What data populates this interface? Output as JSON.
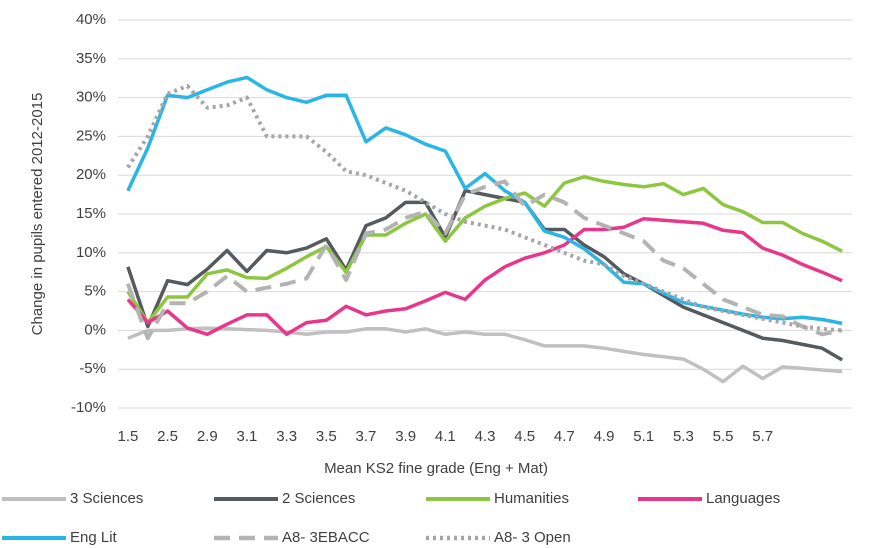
{
  "chart_data": {
    "type": "line",
    "x_label": "Mean KS2 fine grade (Eng + Mat)",
    "y_label": "Change in pupils entered 2012-2015",
    "categories": [
      1.5,
      null,
      2.5,
      null,
      2.9,
      null,
      3.1,
      null,
      3.3,
      null,
      3.5,
      null,
      3.7,
      null,
      3.9,
      null,
      4.1,
      null,
      4.3,
      null,
      4.5,
      null,
      4.7,
      null,
      4.9,
      null,
      5.1,
      null,
      5.3,
      null,
      5.5,
      null,
      5.7,
      null,
      null,
      null,
      null
    ],
    "ylim": [
      -10,
      40
    ],
    "yticks": [
      {
        "value": -10,
        "label": "-10%"
      },
      {
        "value": -5,
        "label": "-5%"
      },
      {
        "value": 0,
        "label": "0%"
      },
      {
        "value": 5,
        "label": "5%"
      },
      {
        "value": 10,
        "label": "10%"
      },
      {
        "value": 15,
        "label": "15%"
      },
      {
        "value": 20,
        "label": "20%"
      },
      {
        "value": 25,
        "label": "25%"
      },
      {
        "value": 30,
        "label": "30%"
      },
      {
        "value": 35,
        "label": "35%"
      },
      {
        "value": 40,
        "label": "40%"
      }
    ],
    "grid": true,
    "legend": "bottom",
    "series": [
      {
        "name": "3 Sciences",
        "color": "#c0c0c0",
        "dash": "solid",
        "values": [
          -1,
          0,
          0,
          0.2,
          0.3,
          0.2,
          0.1,
          0,
          -0.2,
          -0.5,
          -0.2,
          -0.2,
          0.2,
          0.2,
          -0.2,
          0.2,
          -0.5,
          -0.2,
          -0.5,
          -0.5,
          -1.2,
          -2,
          -2,
          -2,
          -2.3,
          -2.7,
          -3.1,
          -3.4,
          -3.7,
          -5,
          -6.6,
          -4.6,
          -6.2,
          -4.7,
          -4.9,
          -5.1,
          -5.3
        ]
      },
      {
        "name": "2 Sciences",
        "color": "#555a5e",
        "dash": "solid",
        "values": [
          8.2,
          0.5,
          6.4,
          5.9,
          7.9,
          10.3,
          7.6,
          10.3,
          10,
          10.6,
          11.8,
          7.8,
          13.5,
          14.5,
          16.5,
          16.5,
          12,
          18,
          17.5,
          17,
          16.5,
          13,
          13,
          11,
          9.5,
          7.3,
          6,
          4.5,
          3,
          2,
          1,
          0,
          -1,
          -1.3,
          -1.8,
          -2.3,
          -3.8
        ]
      },
      {
        "name": "Humanities",
        "color": "#8dc63f",
        "dash": "solid",
        "values": [
          5,
          1,
          4.3,
          4.3,
          7.3,
          7.8,
          6.8,
          6.7,
          8,
          9.5,
          10.8,
          7.5,
          12.3,
          12.3,
          13.8,
          15,
          11.5,
          14.5,
          16,
          17,
          17.7,
          16,
          19,
          19.8,
          19.2,
          18.8,
          18.5,
          18.9,
          17.5,
          18.3,
          16.2,
          15.3,
          13.9,
          13.9,
          12.5,
          11.5,
          10.2
        ]
      },
      {
        "name": "Languages",
        "color": "#e8378a",
        "dash": "solid",
        "values": [
          4,
          1,
          2.5,
          0.3,
          -0.5,
          0.8,
          2,
          2,
          -0.5,
          1,
          1.3,
          3.1,
          2,
          2.5,
          2.8,
          3.8,
          4.9,
          4,
          6.5,
          8.2,
          9.3,
          10,
          11,
          13,
          13,
          13.3,
          14.4,
          14.2,
          14,
          13.8,
          12.9,
          12.6,
          10.6,
          9.7,
          8.5,
          7.5,
          6.4
        ]
      },
      {
        "name": "Eng Lit",
        "color": "#29b6e6",
        "dash": "solid",
        "values": [
          18,
          23.5,
          30.3,
          30,
          31,
          32,
          32.6,
          31,
          30,
          29.4,
          30.3,
          30.3,
          24.3,
          26.1,
          25.2,
          24,
          23.1,
          18.3,
          20.2,
          18,
          16.5,
          12.8,
          12,
          10.5,
          8.5,
          6.2,
          6,
          4.8,
          3.6,
          3.1,
          2.6,
          2.1,
          1.7,
          1.5,
          1.7,
          1.4,
          0.9
        ]
      },
      {
        "name": "A8- 3EBACC",
        "color": "#b3b3b3",
        "dash": "dashed",
        "values": [
          6,
          -1,
          3.5,
          3.5,
          5,
          7,
          5,
          5.5,
          6,
          6.7,
          11,
          6.5,
          12.5,
          13,
          14.5,
          15.3,
          12.5,
          17.5,
          18.5,
          19.2,
          16,
          17.5,
          16.5,
          14.5,
          13.5,
          12.5,
          11.5,
          9,
          8,
          6,
          4,
          3,
          2,
          1.8,
          0.5,
          -0.5,
          0
        ]
      },
      {
        "name": "A8- 3 Open",
        "color": "#a6a6a6",
        "dash": "dotted",
        "values": [
          21,
          25,
          30.5,
          31.5,
          28.7,
          29,
          30,
          25,
          25,
          25,
          23,
          20.5,
          20,
          19,
          18,
          16.5,
          15,
          14,
          13.5,
          13,
          12,
          11,
          10,
          9,
          8.5,
          7,
          6,
          5,
          4,
          3,
          2.5,
          2,
          1.5,
          1,
          0.5,
          0.2,
          0
        ]
      }
    ]
  }
}
